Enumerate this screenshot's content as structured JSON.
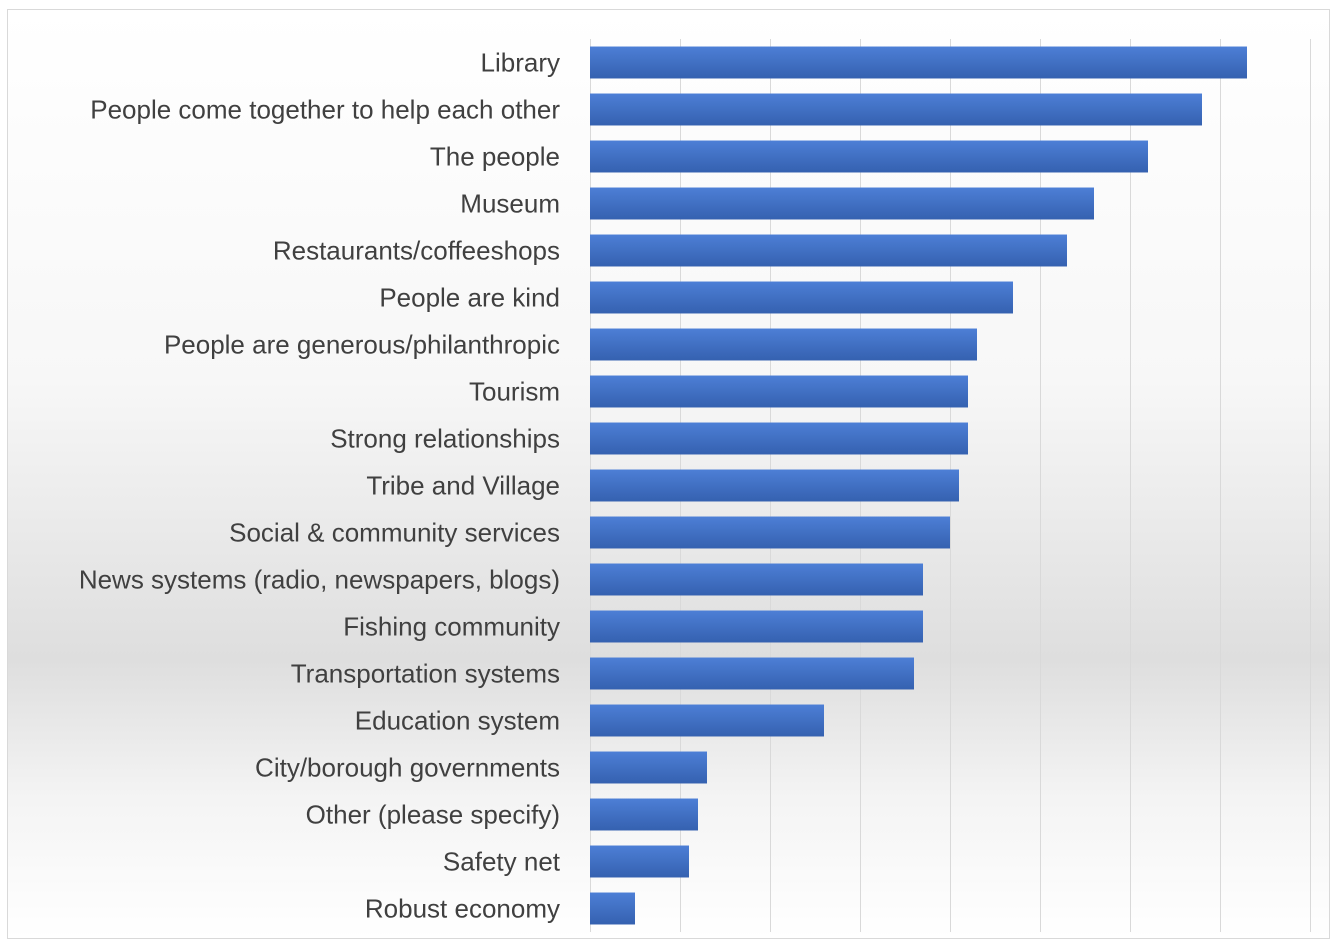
{
  "chart_data": {
    "type": "bar",
    "orientation": "horizontal",
    "title": "",
    "xlabel": "",
    "ylabel": "",
    "categories": [
      "Library",
      "People come together to help each other",
      "The people",
      "Museum",
      "Restaurants/coffeeshops",
      "People are kind",
      "People are generous/philanthropic",
      "Tourism",
      "Strong relationships",
      "Tribe and Village",
      "Social & community services",
      "News systems (radio, newspapers, blogs)",
      "Fishing community",
      "Transportation systems",
      "Education system",
      "City/borough governments",
      "Other (please specify)",
      "Safety net",
      "Robust economy"
    ],
    "values": [
      73,
      68,
      62,
      56,
      53,
      47,
      43,
      42,
      42,
      41,
      40,
      37,
      37,
      36,
      26,
      13,
      12,
      11,
      5
    ],
    "xlim": [
      0,
      80
    ],
    "grid_step": 10,
    "x_tick_labels_shown": false,
    "grid": true,
    "legend": "none",
    "colors": {
      "bar": "#4472c4",
      "bar_light": "#4d7fd6",
      "bar_dark": "#3561b0",
      "gridline": "#d9d9d9",
      "label": "#404040"
    }
  }
}
